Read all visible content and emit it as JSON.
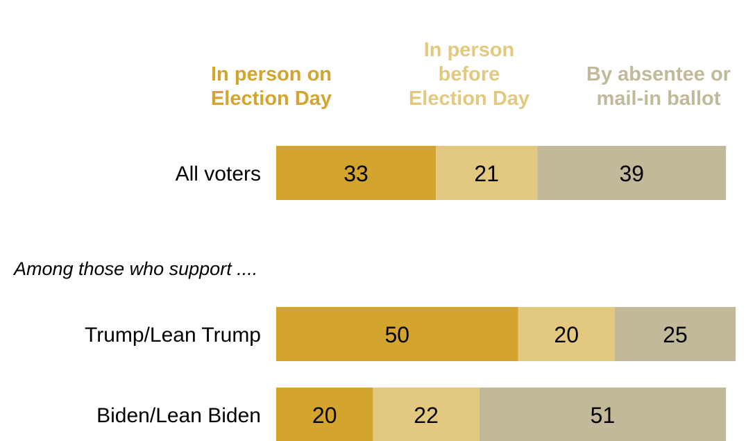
{
  "chart_data": {
    "type": "bar",
    "orientation": "horizontal",
    "stacked": true,
    "series": [
      {
        "name": "In person on Election Day",
        "label_lines": [
          "In person on",
          "Election Day"
        ],
        "color": "#d3a52e"
      },
      {
        "name": "In person before Election Day",
        "label_lines": [
          "In person",
          "before",
          "Election Day"
        ],
        "color": "#e3c97f"
      },
      {
        "name": "By absentee or mail-in ballot",
        "label_lines": [
          "By absentee or",
          "mail-in ballot"
        ],
        "color": "#c1b99a"
      }
    ],
    "subtitle": "Among those who support ....",
    "rows": [
      {
        "label": "All voters",
        "values": [
          33,
          21,
          39
        ]
      },
      {
        "label": "Trump/Lean Trump",
        "values": [
          50,
          20,
          25
        ]
      },
      {
        "label": "Biden/Lean Biden",
        "values": [
          20,
          22,
          51
        ]
      }
    ],
    "xlim": [
      0,
      100
    ],
    "grid": false,
    "legend": "top"
  }
}
